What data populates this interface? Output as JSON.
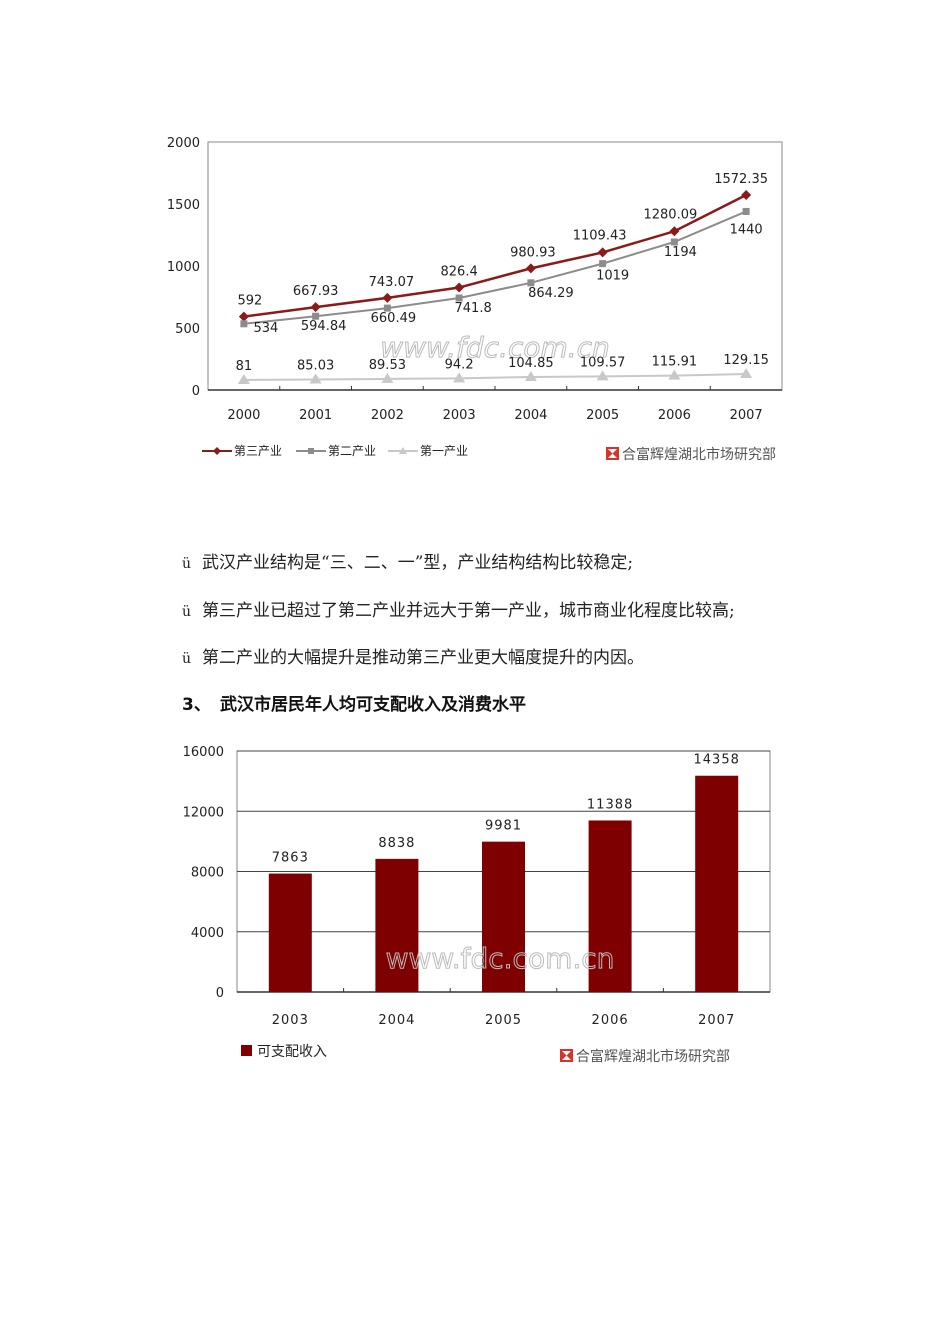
{
  "line_chart_watermark": "www.fdc.com.cn",
  "line_chart_source": "合富辉煌湖北市场研究部",
  "bar_chart_watermark": "www.fdc.com.cn",
  "bar_chart_source": "合富辉煌湖北市场研究部",
  "bullets": [
    {
      "mark": "ü",
      "text": "武汉产业结构是“三、二、一”型，产业结构结构比较稳定;"
    },
    {
      "mark": "ü",
      "text": "第三产业已超过了第二产业并远大于第一产业，城市商业化程度比较高;"
    },
    {
      "mark": "ü",
      "text": "第二产业的大幅提升是推动第三产业更大幅度提升的内因。"
    }
  ],
  "section_heading": {
    "number": "3、",
    "text": "武汉市居民年人均可支配收入及消费水平"
  },
  "colors": {
    "tertiary": "#8b1a1a",
    "secondary": "#8c8c8c",
    "primary": "#c8c8c8",
    "bar": "#7f0000",
    "logo": "#d9322b"
  },
  "chart_data": [
    {
      "type": "line",
      "title": "",
      "xlabel": "",
      "ylabel": "",
      "categories": [
        "2000",
        "2001",
        "2002",
        "2003",
        "2004",
        "2005",
        "2006",
        "2007"
      ],
      "yticks": [
        "0",
        "500",
        "1000",
        "1500",
        "2000"
      ],
      "ylim": [
        0,
        2000
      ],
      "grid": false,
      "legend_position": "bottom-left",
      "series": [
        {
          "name": "第三产业",
          "marker": "diamond",
          "values": [
            592,
            667.93,
            743.07,
            826.4,
            980.93,
            1109.43,
            1280.09,
            1572.35
          ],
          "labels": [
            "592",
            "667.93",
            "743.07",
            "826.4",
            "980.93",
            "1109.43",
            "1280.09",
            "1572.35"
          ]
        },
        {
          "name": "第二产业",
          "marker": "square",
          "values": [
            534,
            594.84,
            660.49,
            741.8,
            864.29,
            1019,
            1194,
            1440
          ],
          "labels": [
            "534",
            "594.84",
            "660.49",
            "741.8",
            "864.29",
            "1019",
            "1194",
            "1440"
          ]
        },
        {
          "name": "第一产业",
          "marker": "triangle",
          "values": [
            81,
            85.03,
            89.53,
            94.2,
            104.85,
            109.57,
            115.91,
            129.15
          ],
          "labels": [
            "81",
            "85.03",
            "89.53",
            "94.2",
            "104.85",
            "109.57",
            "115.91",
            "129.15"
          ]
        }
      ]
    },
    {
      "type": "bar",
      "title": "",
      "xlabel": "",
      "ylabel": "",
      "categories": [
        "2003",
        "2004",
        "2005",
        "2006",
        "2007"
      ],
      "yticks": [
        "0",
        "4000",
        "8000",
        "12000",
        "16000"
      ],
      "ylim": [
        0,
        16000
      ],
      "grid": true,
      "legend_position": "bottom-left",
      "series": [
        {
          "name": "可支配收入",
          "values": [
            7863,
            8838,
            9981,
            11388,
            14358
          ],
          "labels": [
            "7863",
            "8838",
            "9981",
            "11388",
            "14358"
          ]
        }
      ]
    }
  ]
}
